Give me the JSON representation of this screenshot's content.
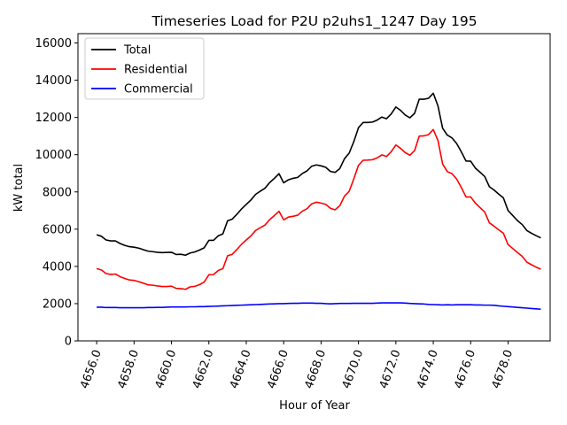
{
  "chart_data": {
    "type": "line",
    "title": "Timeseries Load for P2U p2uhs1_1247  Day 195",
    "xlabel": "Hour of Year",
    "ylabel": "kW total",
    "xlim": [
      4655.0,
      4680.25
    ],
    "ylim": [
      0,
      16500
    ],
    "xticks": [
      4656,
      4658,
      4660,
      4662,
      4664,
      4666,
      4668,
      4670,
      4672,
      4674,
      4676,
      4678
    ],
    "xtick_labels": [
      "4656.0",
      "4658.0",
      "4660.0",
      "4662.0",
      "4664.0",
      "4666.0",
      "4668.0",
      "4670.0",
      "4672.0",
      "4674.0",
      "4676.0",
      "4678.0"
    ],
    "yticks": [
      0,
      2000,
      4000,
      6000,
      8000,
      10000,
      12000,
      14000,
      16000
    ],
    "ytick_labels": [
      "0",
      "2000",
      "4000",
      "6000",
      "8000",
      "10000",
      "12000",
      "14000",
      "16000"
    ],
    "grid": false,
    "legend_position": "top-left",
    "x_start": 4656.0,
    "x_step": 0.25,
    "series": [
      {
        "name": "Total",
        "color": "#000000",
        "values": [
          5700,
          5620,
          5420,
          5370,
          5370,
          5230,
          5130,
          5060,
          5030,
          4980,
          4900,
          4820,
          4790,
          4760,
          4740,
          4750,
          4760,
          4640,
          4650,
          4600,
          4720,
          4780,
          4880,
          5000,
          5400,
          5400,
          5640,
          5750,
          6450,
          6540,
          6800,
          7090,
          7330,
          7570,
          7870,
          8040,
          8200,
          8500,
          8730,
          8980,
          8490,
          8650,
          8730,
          8780,
          8990,
          9130,
          9380,
          9450,
          9400,
          9320,
          9100,
          9050,
          9250,
          9780,
          10080,
          10700,
          11450,
          11730,
          11730,
          11750,
          11860,
          12020,
          11930,
          12190,
          12560,
          12380,
          12130,
          11980,
          12220,
          12980,
          12980,
          13030,
          13300,
          12620,
          11420,
          11050,
          10900,
          10600,
          10150,
          9660,
          9650,
          9280,
          9060,
          8830,
          8280,
          8100,
          7880,
          7680,
          7000,
          6730,
          6460,
          6250,
          5930,
          5780,
          5650,
          5530
        ]
      },
      {
        "name": "Residential",
        "color": "#ff0000",
        "values": [
          3880,
          3810,
          3620,
          3570,
          3590,
          3450,
          3350,
          3270,
          3250,
          3180,
          3100,
          3010,
          2990,
          2950,
          2920,
          2920,
          2940,
          2820,
          2810,
          2770,
          2900,
          2930,
          3020,
          3160,
          3550,
          3560,
          3780,
          3880,
          4570,
          4650,
          4910,
          5190,
          5420,
          5640,
          5930,
          6080,
          6220,
          6510,
          6730,
          6960,
          6500,
          6650,
          6690,
          6750,
          6970,
          7100,
          7360,
          7450,
          7400,
          7330,
          7120,
          7040,
          7260,
          7770,
          8030,
          8700,
          9430,
          9700,
          9710,
          9730,
          9830,
          9990,
          9900,
          10160,
          10520,
          10340,
          10110,
          9970,
          10220,
          11000,
          11010,
          11080,
          11350,
          10760,
          9500,
          9090,
          8980,
          8690,
          8240,
          7730,
          7730,
          7400,
          7160,
          6920,
          6340,
          6160,
          5960,
          5780,
          5170,
          4960,
          4750,
          4540,
          4230,
          4090,
          3960,
          3850
        ]
      },
      {
        "name": "Commercial",
        "color": "#0000ff",
        "values": [
          1810,
          1810,
          1790,
          1790,
          1790,
          1780,
          1780,
          1780,
          1780,
          1780,
          1780,
          1790,
          1790,
          1800,
          1800,
          1810,
          1820,
          1820,
          1820,
          1820,
          1830,
          1830,
          1840,
          1840,
          1850,
          1860,
          1870,
          1880,
          1890,
          1900,
          1910,
          1920,
          1930,
          1940,
          1950,
          1960,
          1970,
          1980,
          1990,
          2000,
          2000,
          2010,
          2020,
          2020,
          2030,
          2030,
          2030,
          2020,
          2020,
          2000,
          1990,
          2000,
          2010,
          2010,
          2010,
          2020,
          2020,
          2020,
          2020,
          2020,
          2030,
          2040,
          2040,
          2040,
          2040,
          2040,
          2030,
          2010,
          2000,
          1990,
          1980,
          1960,
          1950,
          1940,
          1930,
          1940,
          1930,
          1940,
          1940,
          1940,
          1940,
          1930,
          1930,
          1920,
          1920,
          1910,
          1880,
          1860,
          1840,
          1820,
          1800,
          1780,
          1760,
          1740,
          1720,
          1700
        ]
      }
    ]
  }
}
